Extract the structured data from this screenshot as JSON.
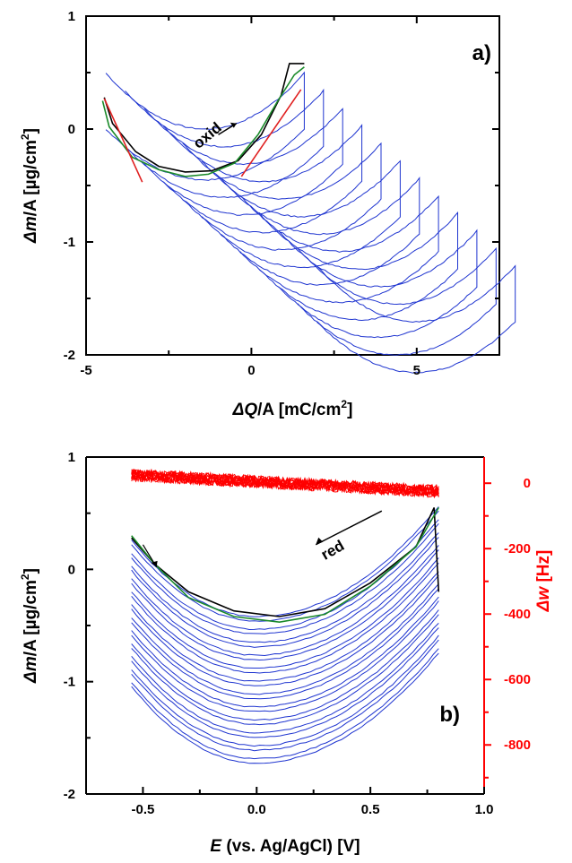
{
  "chart_data": [
    {
      "type": "line",
      "panel_label": "a)",
      "xlabel": {
        "symbol": "ΔQ",
        "rest": "/A [mC/cm",
        "sup": "2",
        "end": "]"
      },
      "ylabel": {
        "symbol": "Δm",
        "rest": "/A [µg/cm",
        "sup": "2",
        "end": "]"
      },
      "xlim": [
        -5,
        7.5
      ],
      "ylim": [
        -2,
        1
      ],
      "x_ticks": [
        "-5",
        "0",
        "5"
      ],
      "y_ticks": [
        "1",
        "0",
        "-1",
        "-2"
      ],
      "grid": false,
      "annotation": "oxid",
      "loops": {
        "count": 12,
        "first_center": [
          -1.4,
          0.05
        ],
        "center_step": [
          0.58,
          -0.155
        ],
        "x_halfwidth": 3.0,
        "top_amplitude": 0.55,
        "bottom_amplitude": 0.45,
        "color": "#1f35d0"
      },
      "highlight_series": [
        {
          "name": "black",
          "color": "#000000",
          "x": [
            -4.45,
            -4.2,
            -3.5,
            -2.8,
            -2.0,
            -1.2,
            -0.4,
            0.3,
            0.9,
            1.15,
            1.6
          ],
          "y": [
            0.28,
            0.05,
            -0.2,
            -0.33,
            -0.38,
            -0.37,
            -0.28,
            -0.05,
            0.3,
            0.58,
            0.58
          ]
        },
        {
          "name": "green",
          "color": "#1a8a2a",
          "x": [
            -4.5,
            -4.3,
            -3.6,
            -2.8,
            -2.0,
            -1.3,
            -0.5,
            0.2,
            0.8,
            1.3,
            1.6
          ],
          "y": [
            0.25,
            0.02,
            -0.25,
            -0.36,
            -0.42,
            -0.4,
            -0.3,
            -0.05,
            0.25,
            0.48,
            0.55
          ]
        },
        {
          "name": "red",
          "color": "#e02020",
          "x": [
            -4.45,
            -3.3
          ],
          "y": [
            0.27,
            -0.47
          ]
        },
        {
          "name": "red",
          "color": "#e02020",
          "x": [
            -0.3,
            1.5
          ],
          "y": [
            -0.42,
            0.35
          ]
        }
      ]
    },
    {
      "type": "line",
      "panel_label": "b)",
      "xlabel": {
        "symbol": "E",
        "rest": " (vs. Ag/AgCl)  [V]"
      },
      "ylabel": {
        "symbol": "Δm",
        "rest": "/A [µg/cm",
        "sup": "2",
        "end": "]"
      },
      "ylabel_right": {
        "symbol": "Δw",
        "rest": " [Hz]"
      },
      "xlim": [
        -0.75,
        1.0
      ],
      "ylim": [
        -2,
        1
      ],
      "y2lim": [
        -950,
        80
      ],
      "x_ticks": [
        "-0.5",
        "0.0",
        "0.5",
        "1.0"
      ],
      "y_ticks": [
        "1",
        "0",
        "-1",
        "-2"
      ],
      "y2_ticks": [
        "0",
        "-200",
        "-400",
        "-600",
        "-800"
      ],
      "grid": false,
      "annotation": "red",
      "parabolas": {
        "count": 12,
        "x_range": [
          -0.55,
          0.8
        ],
        "first_vertex_y": -0.43,
        "vertex_step": -0.115,
        "first_left_y": 0.25,
        "first_right_y": 0.55,
        "left_step": -0.115,
        "right_step": -0.115,
        "color": "#1f35d0"
      },
      "freq_band": {
        "x_range": [
          -0.55,
          0.8
        ],
        "start_hz": 25,
        "end_hz": -25,
        "color": "#ff0000"
      },
      "highlight_series": [
        {
          "name": "black",
          "color": "#000000",
          "x": [
            -0.55,
            -0.45,
            -0.3,
            -0.1,
            0.1,
            0.3,
            0.5,
            0.7,
            0.78,
            0.8
          ],
          "y": [
            0.28,
            0.05,
            -0.2,
            -0.37,
            -0.42,
            -0.35,
            -0.12,
            0.2,
            0.55,
            -0.2
          ]
        },
        {
          "name": "green",
          "color": "#1a8a2a",
          "x": [
            -0.55,
            -0.45,
            -0.3,
            -0.1,
            0.1,
            0.3,
            0.5,
            0.7,
            0.8
          ],
          "y": [
            0.3,
            0.05,
            -0.25,
            -0.42,
            -0.47,
            -0.4,
            -0.15,
            0.2,
            0.55
          ]
        }
      ]
    }
  ]
}
